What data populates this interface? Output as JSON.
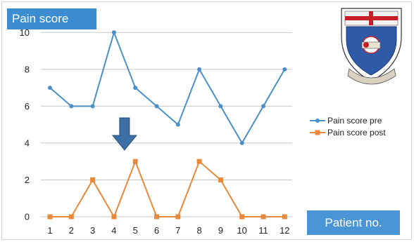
{
  "chart_data": {
    "type": "line",
    "title": "Pain score",
    "xlabel": "Patient no.",
    "ylabel": "",
    "categories": [
      "1",
      "2",
      "3",
      "4",
      "5",
      "6",
      "7",
      "8",
      "9",
      "10",
      "11",
      "12"
    ],
    "ylim": [
      0,
      11
    ],
    "yticks": [
      "0",
      "2",
      "4",
      "6",
      "8",
      "10"
    ],
    "grid": true,
    "legend_position": "right",
    "series": [
      {
        "name": "Pain score pre",
        "values": [
          7,
          6,
          6,
          10,
          7,
          6,
          5,
          8,
          6,
          4,
          6,
          8
        ],
        "color": "#4a90c8",
        "marker": "circle"
      },
      {
        "name": "Pain score post",
        "values": [
          0,
          0,
          2,
          0,
          3,
          0,
          0,
          3,
          2,
          0,
          0,
          0
        ],
        "color": "#e8883a",
        "marker": "square"
      }
    ],
    "annotation": {
      "type": "down-arrow",
      "category": "4",
      "color": "#3b6fa6"
    }
  },
  "logo": {
    "name": "university-crest",
    "colors": {
      "shield": "#2e5aa8",
      "ribbon": "#d9d2c0",
      "accent": "#c8202a"
    },
    "motto": "Sanvitti visioh vanaka"
  }
}
